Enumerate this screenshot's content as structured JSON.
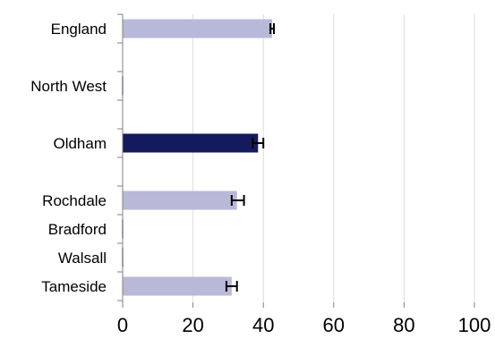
{
  "chart_data": {
    "type": "bar",
    "orientation": "horizontal",
    "title": "",
    "xlabel": "",
    "ylabel": "",
    "xlim": [
      0,
      100
    ],
    "x_ticks": [
      0,
      20,
      40,
      60,
      80,
      100
    ],
    "grid": true,
    "categories": [
      "England",
      "North West",
      "Oldham",
      "Rochdale",
      "Bradford",
      "Walsall",
      "Tameside"
    ],
    "values": [
      42.5,
      null,
      38.5,
      32.5,
      null,
      null,
      31.0
    ],
    "error_low": [
      42.0,
      null,
      37.0,
      31.0,
      null,
      null,
      29.5
    ],
    "error_high": [
      43.0,
      null,
      40.0,
      34.5,
      null,
      null,
      32.5
    ],
    "highlight": "Oldham",
    "colors": {
      "bar": "#b8b8d8",
      "highlight": "#141a5e",
      "grid": "#dcdcdc",
      "axis": "#808080",
      "error_bar": "#000000"
    }
  }
}
